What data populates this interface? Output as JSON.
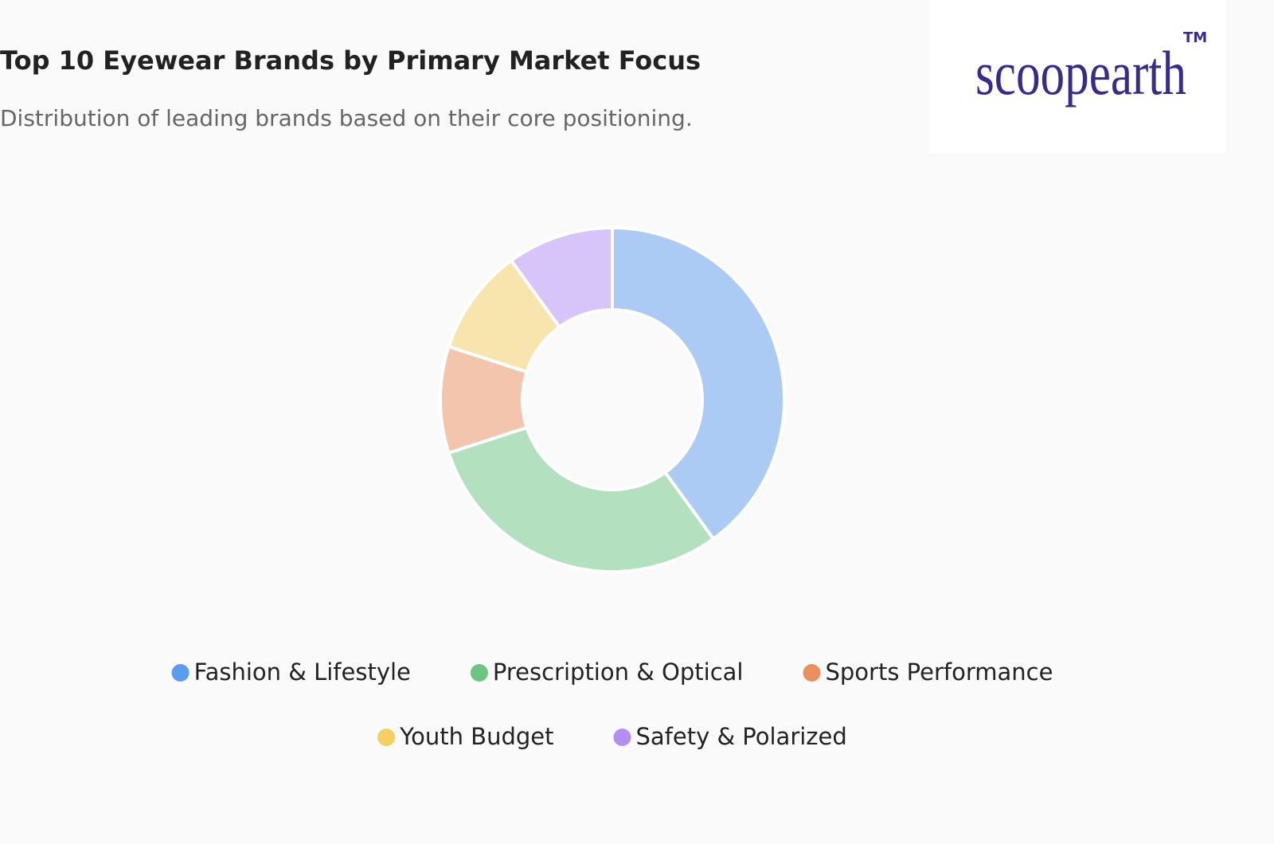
{
  "chart_data": {
    "type": "donut",
    "title": "Top 10 Eyewear Brands by Primary Market Focus",
    "subtitle": "Distribution of leading brands based on their core positioning.",
    "categories": [
      "Fashion & Lifestyle",
      "Prescription & Optical",
      "Sports Performance",
      "Youth Budget",
      "Safety & Polarized"
    ],
    "values": [
      4,
      3,
      1,
      1,
      1
    ],
    "colors": [
      "#5b9bf0",
      "#6cc583",
      "#ec8f5e",
      "#f5d061",
      "#b48ef5"
    ]
  },
  "logo": {
    "text": "scoopearth",
    "mark": "TM"
  }
}
